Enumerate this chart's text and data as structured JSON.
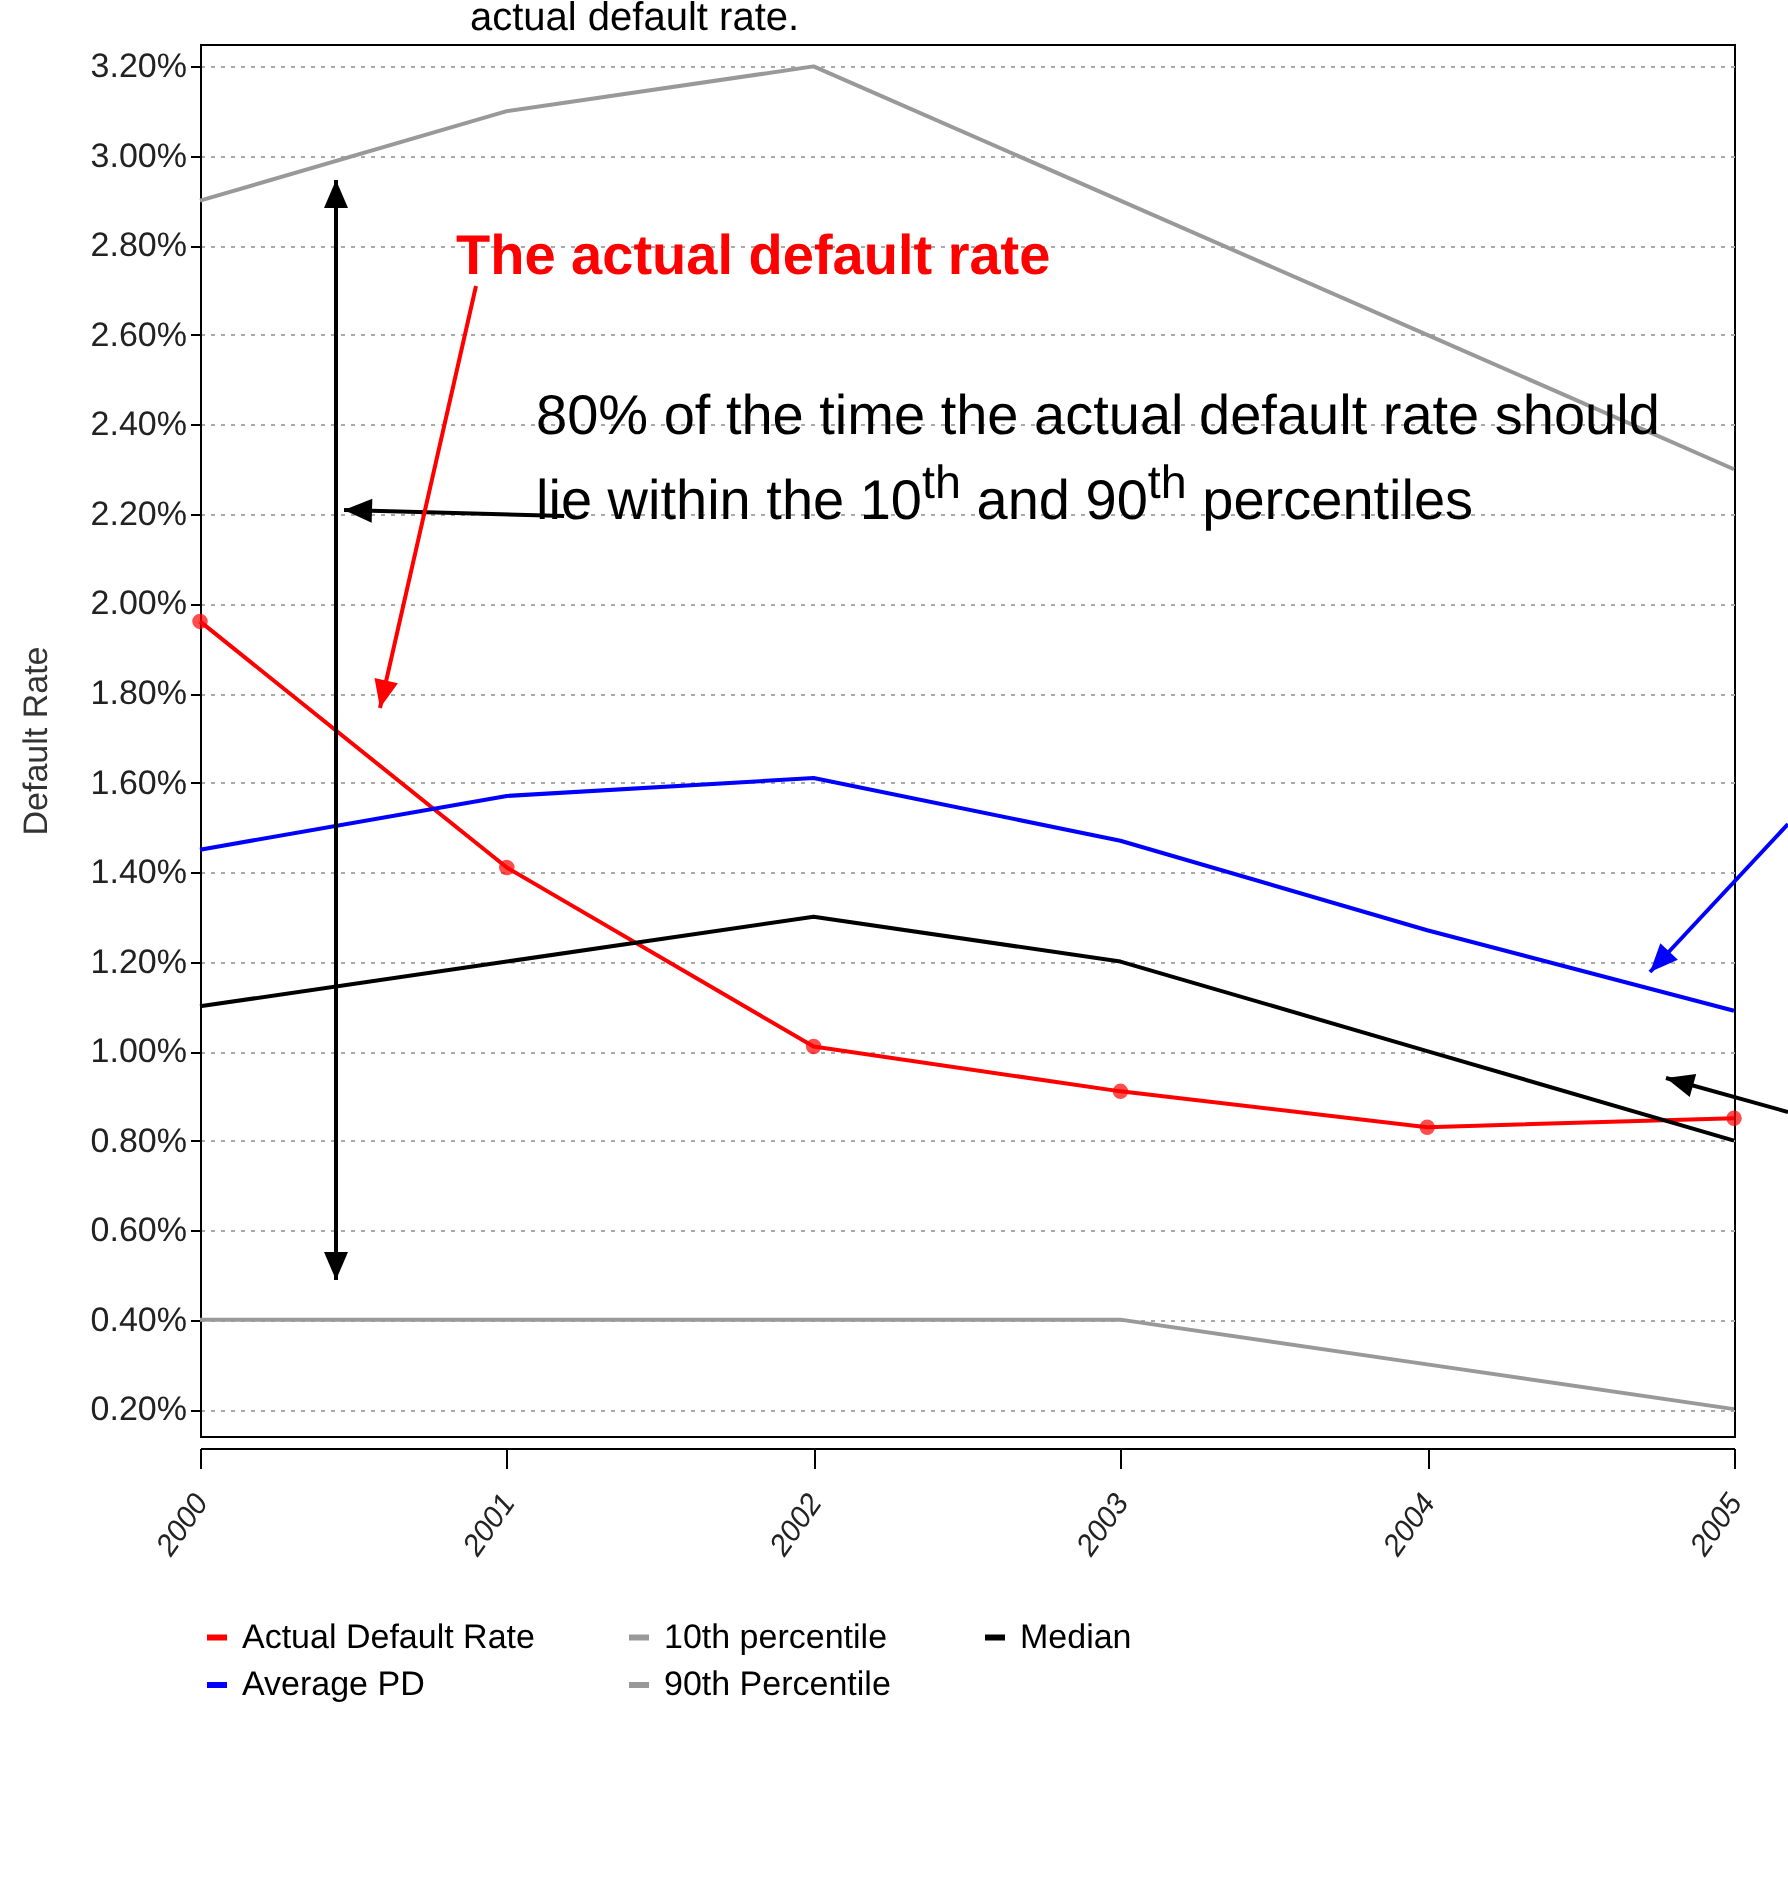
{
  "chart_data": {
    "type": "line",
    "ylabel": "Default Rate",
    "x": [
      2000,
      2001,
      2002,
      2003,
      2004,
      2005
    ],
    "xlim": [
      2000,
      2005
    ],
    "xticks": [
      2000,
      2001,
      2002,
      2003,
      2004,
      2005
    ],
    "ylim": [
      0.14,
      3.25
    ],
    "yticks": [
      {
        "value": 0.2,
        "label": "0.20%"
      },
      {
        "value": 0.4,
        "label": "0.40%"
      },
      {
        "value": 0.6,
        "label": "0.60%"
      },
      {
        "value": 0.8,
        "label": "0.80%"
      },
      {
        "value": 1.0,
        "label": "1.00%"
      },
      {
        "value": 1.2,
        "label": "1.20%"
      },
      {
        "value": 1.4,
        "label": "1.40%"
      },
      {
        "value": 1.6,
        "label": "1.60%"
      },
      {
        "value": 1.8,
        "label": "1.80%"
      },
      {
        "value": 2.0,
        "label": "2.00%"
      },
      {
        "value": 2.2,
        "label": "2.20%"
      },
      {
        "value": 2.4,
        "label": "2.40%"
      },
      {
        "value": 2.6,
        "label": "2.60%"
      },
      {
        "value": 2.8,
        "label": "2.80%"
      },
      {
        "value": 3.0,
        "label": "3.00%"
      },
      {
        "value": 3.2,
        "label": "3.20%"
      }
    ],
    "series": [
      {
        "name": "Actual Default Rate",
        "color": "#ff0000",
        "marker": "circle",
        "values": [
          1.96,
          1.41,
          1.01,
          0.91,
          0.83,
          0.85
        ]
      },
      {
        "name": "10th percentile",
        "color": "#999999",
        "values": [
          0.4,
          0.4,
          0.4,
          0.4,
          0.3,
          0.2
        ]
      },
      {
        "name": "Median",
        "color": "#000000",
        "values": [
          1.1,
          1.2,
          1.3,
          1.2,
          1.0,
          0.8
        ]
      },
      {
        "name": "Average PD",
        "color": "#0000ff",
        "values": [
          1.45,
          1.57,
          1.61,
          1.47,
          1.27,
          1.09
        ]
      },
      {
        "name": "90th Percentile",
        "color": "#999999",
        "values": [
          2.9,
          3.1,
          3.2,
          2.9,
          2.6,
          2.3
        ]
      }
    ],
    "grid": "y",
    "legend": "bottom",
    "annotations": [
      "actual default rate.",
      "The actual default rate",
      "80% of the time the actual default rate should lie within the 10$^{th}$ and 90$^{th}$ percentiles"
    ]
  }
}
